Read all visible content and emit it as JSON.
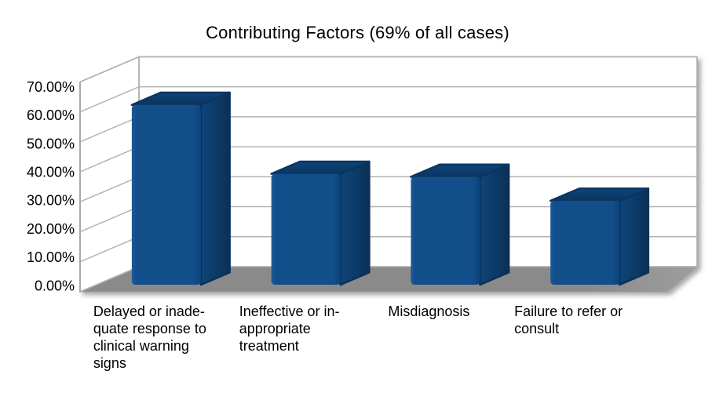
{
  "page": {
    "background": "#FFFFFF"
  },
  "chart_data": {
    "type": "bar",
    "projection": "3d",
    "title": "Contributing Factors (69% of all cases)",
    "categories": [
      "Delayed or inadequate response to clinical warning signs",
      "Ineffective or inappropriate treatment",
      "Misdiagnosis",
      "Failure to refer or consult"
    ],
    "category_label_lines": [
      [
        "Delayed or inade-",
        "quate response to",
        "clinical warning",
        "signs"
      ],
      [
        "Ineffective or in-",
        "appropriate",
        "treatment"
      ],
      [
        "Misdiagnosis"
      ],
      [
        "Failure to refer or",
        "consult"
      ]
    ],
    "values": [
      60,
      37,
      36,
      28
    ],
    "value_unit": "percent",
    "ylim": [
      0,
      70
    ],
    "y_tick_interval": 10,
    "y_tick_labels": [
      "0.00%",
      "10.00%",
      "20.00%",
      "30.00%",
      "40.00%",
      "50.00%",
      "60.00%",
      "70.00%"
    ],
    "grid": true,
    "legend": false,
    "colors": {
      "bar_front": "#114E8A",
      "bar_front_edge_light": "#1B5B99",
      "bar_front_edge_dark": "#0D4278",
      "bar_side_light": "#0F4579",
      "bar_side_dark": "#0A3158",
      "bar_top_front": "#0A3560",
      "bar_top_back": "#0E4578",
      "floor": "#8A8A8A",
      "floor_light_corner": "#9E9E9E",
      "wall": "#FFFFFF",
      "gridline": "#B3B3B3",
      "wall_border": "#A9A9A9",
      "text": "#000000",
      "background": "#FFFFFF"
    }
  }
}
